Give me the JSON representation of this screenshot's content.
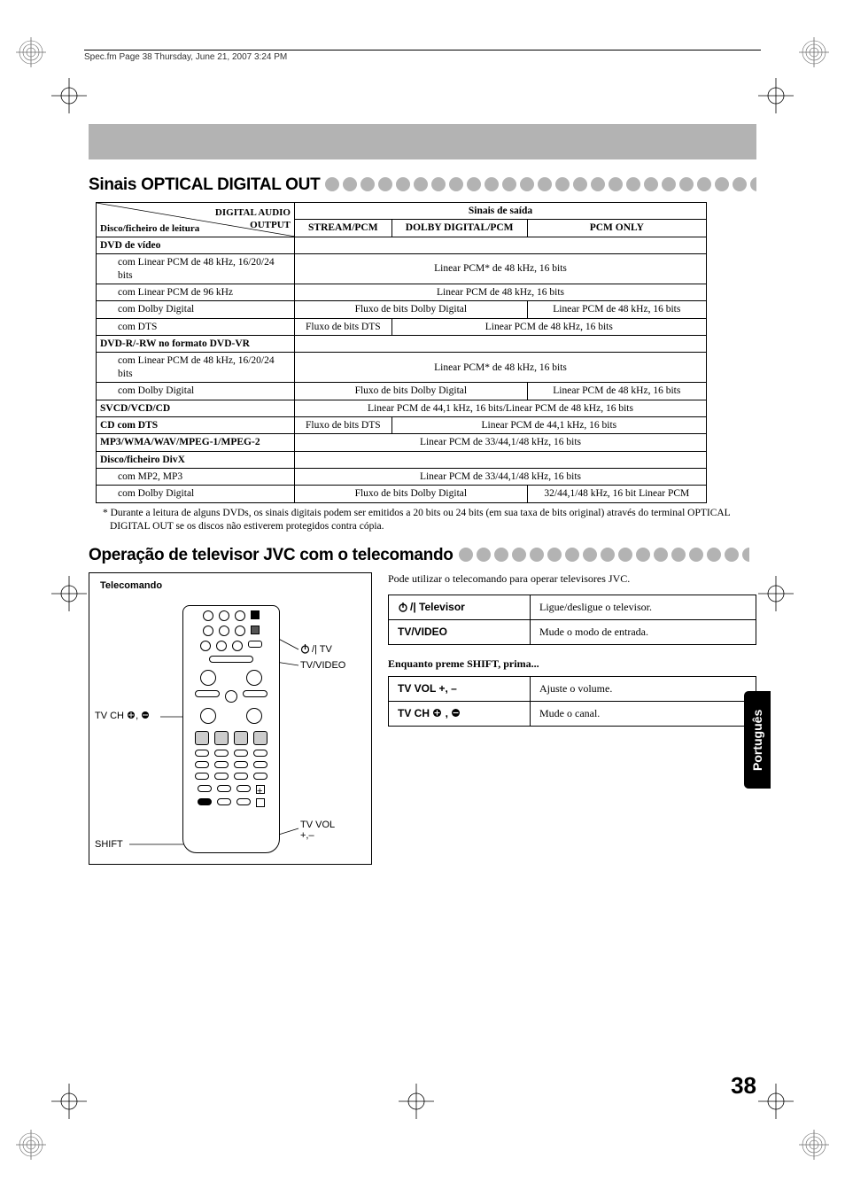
{
  "header_strip": "Spec.fm  Page 38  Thursday, June 21, 2007  3:24 PM",
  "section1_title": "Sinais OPTICAL DIGITAL OUT",
  "table1": {
    "corner_top": "DIGITAL AUDIO",
    "corner_bottom": "OUTPUT",
    "disc_label": "Disco/ficheiro de leitura",
    "output_header": "Sinais de saída",
    "cols": [
      "STREAM/PCM",
      "DOLBY DIGITAL/PCM",
      "PCM ONLY"
    ],
    "rows": [
      {
        "label": "DVD de vídeo",
        "type": "group"
      },
      {
        "label": "com Linear PCM de 48 kHz, 16/20/24 bits",
        "sub": true,
        "out": "Linear PCM* de 48 kHz, 16 bits",
        "span": 3
      },
      {
        "label": "com Linear PCM de 96 kHz",
        "sub": true,
        "out": "Linear PCM de 48 kHz, 16 bits",
        "span": 3
      },
      {
        "label": "com Dolby Digital",
        "sub": true,
        "cells": [
          {
            "t": "Fluxo de bits Dolby Digital",
            "span": 2
          },
          {
            "t": "Linear PCM de 48 kHz, 16 bits"
          }
        ]
      },
      {
        "label": "com DTS",
        "sub": true,
        "cells": [
          {
            "t": "Fluxo de bits DTS"
          },
          {
            "t": "Linear PCM de 48 kHz, 16 bits",
            "span": 2
          }
        ]
      },
      {
        "label": "DVD-R/-RW no formato DVD-VR",
        "type": "group"
      },
      {
        "label": "com Linear PCM de 48 kHz, 16/20/24 bits",
        "sub": true,
        "out": "Linear PCM* de 48 kHz, 16 bits",
        "span": 3
      },
      {
        "label": "com Dolby Digital",
        "sub": true,
        "cells": [
          {
            "t": "Fluxo de bits Dolby Digital",
            "span": 2
          },
          {
            "t": "Linear PCM de 48 kHz, 16 bits"
          }
        ]
      },
      {
        "label": "SVCD/VCD/CD",
        "out": "Linear PCM de 44,1 kHz, 16 bits/Linear PCM de 48 kHz, 16 bits",
        "span": 3
      },
      {
        "label": "CD com DTS",
        "cells": [
          {
            "t": "Fluxo de bits DTS"
          },
          {
            "t": "Linear PCM de 44,1 kHz, 16 bits",
            "span": 2
          }
        ]
      },
      {
        "label": "MP3/WMA/WAV/MPEG-1/MPEG-2",
        "out": "Linear PCM de 33/44,1/48 kHz, 16 bits",
        "span": 3
      },
      {
        "label": "Disco/ficheiro DivX",
        "type": "group"
      },
      {
        "label": "com MP2, MP3",
        "sub": true,
        "out": "Linear PCM de 33/44,1/48 kHz, 16 bits",
        "span": 3
      },
      {
        "label": "com Dolby Digital",
        "sub": true,
        "cells": [
          {
            "t": "Fluxo de bits Dolby Digital",
            "span": 2
          },
          {
            "t": "32/44,1/48 kHz, 16 bit Linear PCM"
          }
        ]
      }
    ]
  },
  "footnote": "* Durante a leitura de alguns DVDs, os sinais digitais podem ser emitidos a 20 bits ou 24 bits (em sua taxa de bits original) através do terminal OPTICAL DIGITAL OUT se os discos não estiverem protegidos contra cópia.",
  "section2_title": "Operação de televisor JVC com o telecomando",
  "remote": {
    "title": "Telecomando",
    "callouts": {
      "power_tv": " TV",
      "tv_video": "TV/VIDEO",
      "tv_ch": "TV CH",
      "shift": "SHIFT",
      "tv_vol": "TV VOL",
      "tv_vol_suffix": "+,–"
    }
  },
  "tv_intro": "Pode utilizar o telecomando para operar televisores JVC.",
  "tv_table1": [
    {
      "key_icon": "power",
      "key": " Televisor",
      "val": "Ligue/desligue o televisor."
    },
    {
      "key": "TV/VIDEO",
      "val": "Mude o modo de entrada."
    }
  ],
  "shift_header": "Enquanto preme SHIFT, prima...",
  "tv_table2": [
    {
      "key": "TV VOL +, –",
      "val": "Ajuste o volume."
    },
    {
      "key": "TV CH ",
      "key_icons": "plusminus",
      "val": "Mude o canal."
    }
  ],
  "lang_tab": "Português",
  "page_number": "38",
  "colors": {
    "grey": "#b3b3b3",
    "black": "#000000",
    "text": "#000000"
  }
}
